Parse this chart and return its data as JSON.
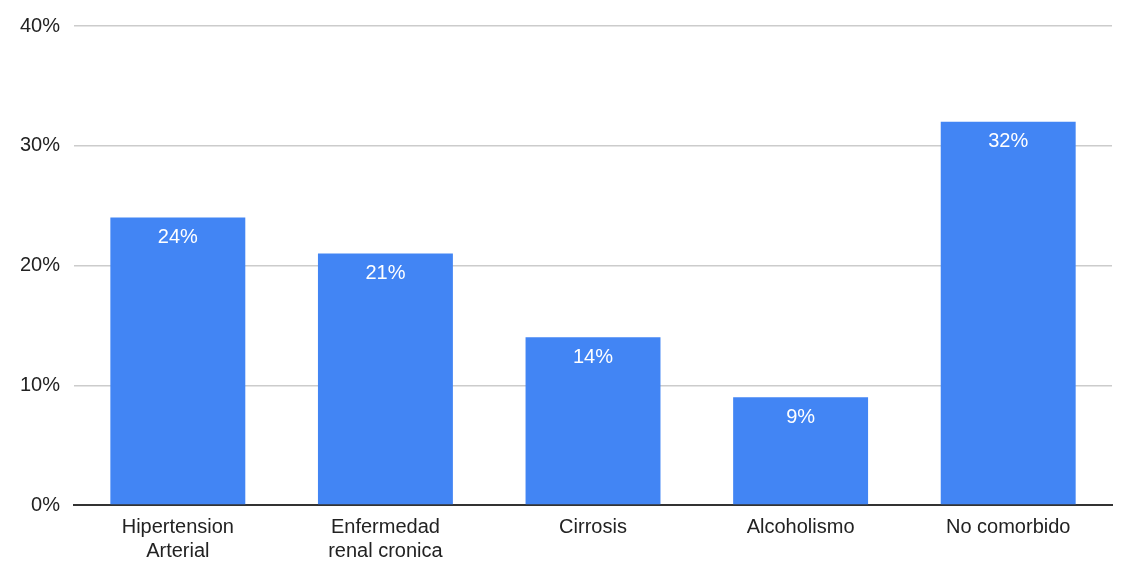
{
  "chart_data": {
    "type": "bar",
    "categories": [
      "Hipertension Arterial",
      "Enfermedad renal cronica",
      "Cirrosis",
      "Alcoholismo",
      "No comorbido"
    ],
    "values": [
      24,
      21,
      14,
      9,
      32
    ],
    "value_labels": [
      "24%",
      "21%",
      "14%",
      "9%",
      "32%"
    ],
    "color": "#4285f4",
    "ylim": [
      0,
      40
    ],
    "yticks": [
      {
        "value": 0,
        "label": "0%"
      },
      {
        "value": 10,
        "label": "10%"
      },
      {
        "value": 20,
        "label": "20%"
      },
      {
        "value": 30,
        "label": "30%"
      },
      {
        "value": 40,
        "label": "40%"
      }
    ],
    "grid": "y",
    "legend": false
  }
}
